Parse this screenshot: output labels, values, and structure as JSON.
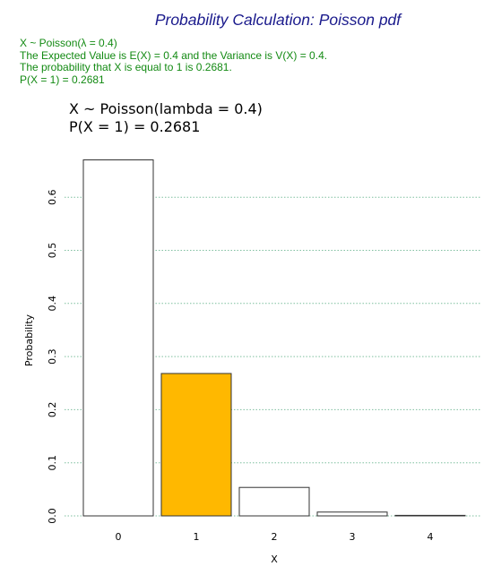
{
  "page_title": "Probability Calculation: Poisson pdf",
  "info_lines": [
    "X ~ Poisson(λ = 0.4)",
    "The Expected Value is E(X) = 0.4 and the Variance is V(X) = 0.4.",
    "The probability that X is equal to 1 is 0.2681.",
    "P(X = 1) = 0.2681"
  ],
  "colors": {
    "title": "#1a1a8c",
    "info_text": "#138a13",
    "highlight_bar": "#FFB800",
    "bar_fill": "#ffffff",
    "bar_stroke": "#333333",
    "grid": "#7fbf9f"
  },
  "chart_data": {
    "type": "bar",
    "title_lines": [
      "X ~ Poisson(lambda = 0.4)",
      "P(X = 1) = 0.2681"
    ],
    "categories": [
      "0",
      "1",
      "2",
      "3",
      "4"
    ],
    "values": [
      0.6703,
      0.2681,
      0.0536,
      0.0072,
      0.0007
    ],
    "highlight_index": 1,
    "xlabel": "X",
    "ylabel": "Probability",
    "yticks": [
      "0.0",
      "0.1",
      "0.2",
      "0.3",
      "0.4",
      "0.5",
      "0.6"
    ],
    "ylim": [
      0,
      0.68
    ],
    "grid": true,
    "grid_style": "dotted horizontal"
  }
}
